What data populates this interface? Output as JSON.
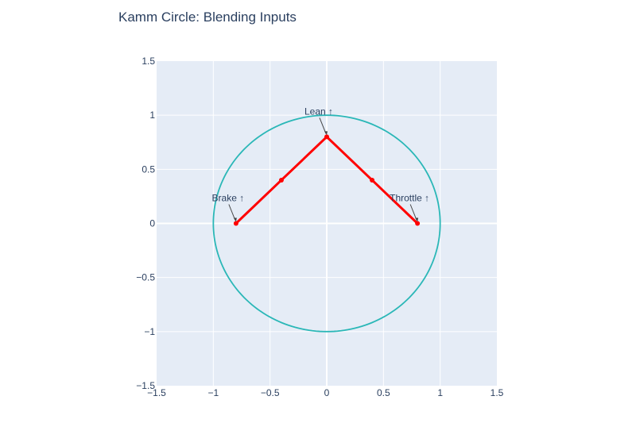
{
  "chart_data": {
    "type": "line",
    "title": "Kamm Circle: Blending Inputs",
    "xlabel": "",
    "ylabel": "",
    "xlim": [
      -1.5,
      1.5
    ],
    "ylim": [
      -1.5,
      1.5
    ],
    "x_ticks": [
      -1.5,
      -1,
      -0.5,
      0,
      0.5,
      1,
      1.5
    ],
    "y_ticks": [
      -1.5,
      -1,
      -0.5,
      0,
      0.5,
      1,
      1.5
    ],
    "x_tick_labels": [
      "−1.5",
      "−1",
      "−0.5",
      "0",
      "0.5",
      "1",
      "1.5"
    ],
    "y_tick_labels": [
      "−1.5",
      "−1",
      "−0.5",
      "0",
      "0.5",
      "1",
      "1.5"
    ],
    "grid": true,
    "background_color": "#e5ecf6",
    "series": [
      {
        "kind": "circle",
        "color": "#2ab7b7",
        "center": [
          0,
          0
        ],
        "radius": 1
      },
      {
        "kind": "line+markers",
        "color": "#ff0000",
        "x": [
          -0.8,
          -0.4,
          0,
          0.4,
          0.8
        ],
        "y": [
          0,
          0.4,
          0.8,
          0.4,
          0
        ]
      }
    ],
    "annotations": [
      {
        "text": "Brake ↑",
        "x": -0.8,
        "y": 0
      },
      {
        "text": "Lean ↑",
        "x": 0,
        "y": 0.8
      },
      {
        "text": "Throttle ↑",
        "x": 0.8,
        "y": 0
      }
    ]
  }
}
